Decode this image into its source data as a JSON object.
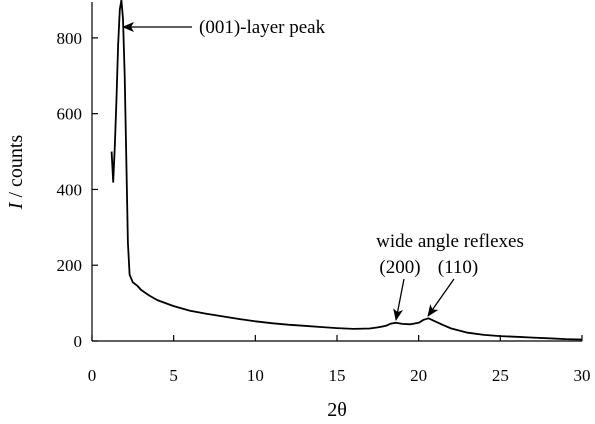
{
  "chart_data": {
    "type": "line",
    "title": "",
    "xlabel": "2θ",
    "ylabel_italic": "I",
    "ylabel_rest": " / counts",
    "xlim": [
      0,
      30
    ],
    "ylim": [
      0,
      900
    ],
    "xticks": [
      0,
      5,
      10,
      15,
      20,
      25,
      30
    ],
    "yticks": [
      0,
      200,
      400,
      600,
      800
    ],
    "grid": false,
    "legend": "none",
    "line_color": "#000000",
    "series": [
      {
        "x": [
          1.2,
          1.3,
          1.4,
          1.5,
          1.6,
          1.7,
          1.8,
          1.9,
          2.0,
          2.1,
          2.2,
          2.3,
          2.5,
          2.8,
          3,
          3.5,
          4,
          5,
          6,
          7,
          8,
          9,
          10,
          11,
          12,
          13,
          14,
          15,
          16,
          17,
          17.5,
          18,
          18.3,
          18.6,
          19,
          19.5,
          20,
          20.3,
          20.6,
          21,
          21.5,
          22,
          23,
          24,
          25,
          26,
          27,
          28,
          29,
          30
        ],
        "y": [
          500,
          420,
          520,
          640,
          780,
          875,
          900,
          850,
          700,
          480,
          260,
          175,
          155,
          145,
          135,
          120,
          108,
          92,
          80,
          72,
          65,
          58,
          52,
          47,
          43,
          40,
          37,
          34,
          32,
          33,
          36,
          40,
          46,
          48,
          45,
          44,
          48,
          56,
          60,
          52,
          42,
          33,
          22,
          16,
          13,
          11,
          9,
          7,
          5,
          4
        ]
      }
    ],
    "annotations": [
      {
        "text": "(001)-layer peak",
        "arrow_to": [
          1.8,
          895
        ]
      },
      {
        "text": "wide angle reflexes",
        "arrow_to": null
      },
      {
        "text": "(200)",
        "arrow_to": [
          18.6,
          48
        ]
      },
      {
        "text": "(110)",
        "arrow_to": [
          20.6,
          60
        ]
      }
    ]
  }
}
